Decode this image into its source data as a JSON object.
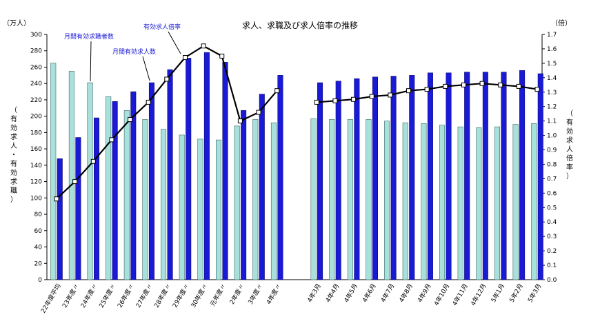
{
  "chart_data": {
    "type": "bar",
    "title": "求人、求職及び求人倍率の推移",
    "left_axis": {
      "unit": "（万人）",
      "label_chars": [
        "（",
        "有",
        "効",
        "求",
        "人",
        "・",
        "有",
        "効",
        "求",
        "職",
        "）"
      ],
      "ylim": [
        0,
        300
      ],
      "ticks": [
        0,
        20,
        40,
        60,
        80,
        100,
        120,
        140,
        160,
        180,
        200,
        220,
        240,
        260,
        280,
        300
      ]
    },
    "right_axis": {
      "unit": "（倍）",
      "label_chars": [
        "（",
        "有",
        "効",
        "求",
        "人",
        "倍",
        "率",
        "）"
      ],
      "ylim": [
        0,
        1.7
      ],
      "ticks": [
        "0.0",
        "0.1",
        "0.2",
        "0.3",
        "0.4",
        "0.5",
        "0.6",
        "0.7",
        "0.8",
        "0.9",
        "1.0",
        "1.1",
        "1.2",
        "1.3",
        "1.4",
        "1.5",
        "1.6",
        "1.7"
      ]
    },
    "categories": [
      "22年度平均",
      "23年度〃",
      "24年度〃",
      "25年度〃",
      "26年度〃",
      "27年度〃",
      "28年度〃",
      "29年度〃",
      "30年度〃",
      "元年度〃",
      "2年度〃",
      "3年度〃",
      "4年度〃",
      "4年3月",
      "4年4月",
      "4年5月",
      "4年6月",
      "4年7月",
      "4年8月",
      "4年9月",
      "4年10月",
      "4年11月",
      "4年12月",
      "5年1月",
      "5年2月",
      "5年3月"
    ],
    "series": [
      {
        "name": "月間有効求職者数",
        "axis": "left",
        "color": "#a8e0dc",
        "values": [
          265,
          255,
          241,
          224,
          207,
          196,
          184,
          177,
          172,
          171,
          188,
          196,
          192,
          197,
          196,
          196,
          196,
          194,
          192,
          191,
          189,
          187,
          186,
          187,
          190,
          191
        ]
      },
      {
        "name": "月間有効求人数",
        "axis": "left",
        "color": "#1a1ad6",
        "values": [
          148,
          174,
          198,
          218,
          230,
          241,
          257,
          271,
          278,
          266,
          207,
          227,
          250,
          241,
          243,
          246,
          248,
          249,
          250,
          253,
          253,
          254,
          254,
          254,
          256,
          252
        ]
      },
      {
        "name": "有効求人倍率",
        "axis": "right",
        "type": "line",
        "color": "#000000",
        "values": [
          0.56,
          0.68,
          0.82,
          0.97,
          1.11,
          1.23,
          1.39,
          1.54,
          1.62,
          1.55,
          1.1,
          1.16,
          1.31,
          1.23,
          1.24,
          1.25,
          1.27,
          1.28,
          1.31,
          1.32,
          1.34,
          1.35,
          1.36,
          1.35,
          1.34,
          1.32
        ]
      }
    ]
  }
}
